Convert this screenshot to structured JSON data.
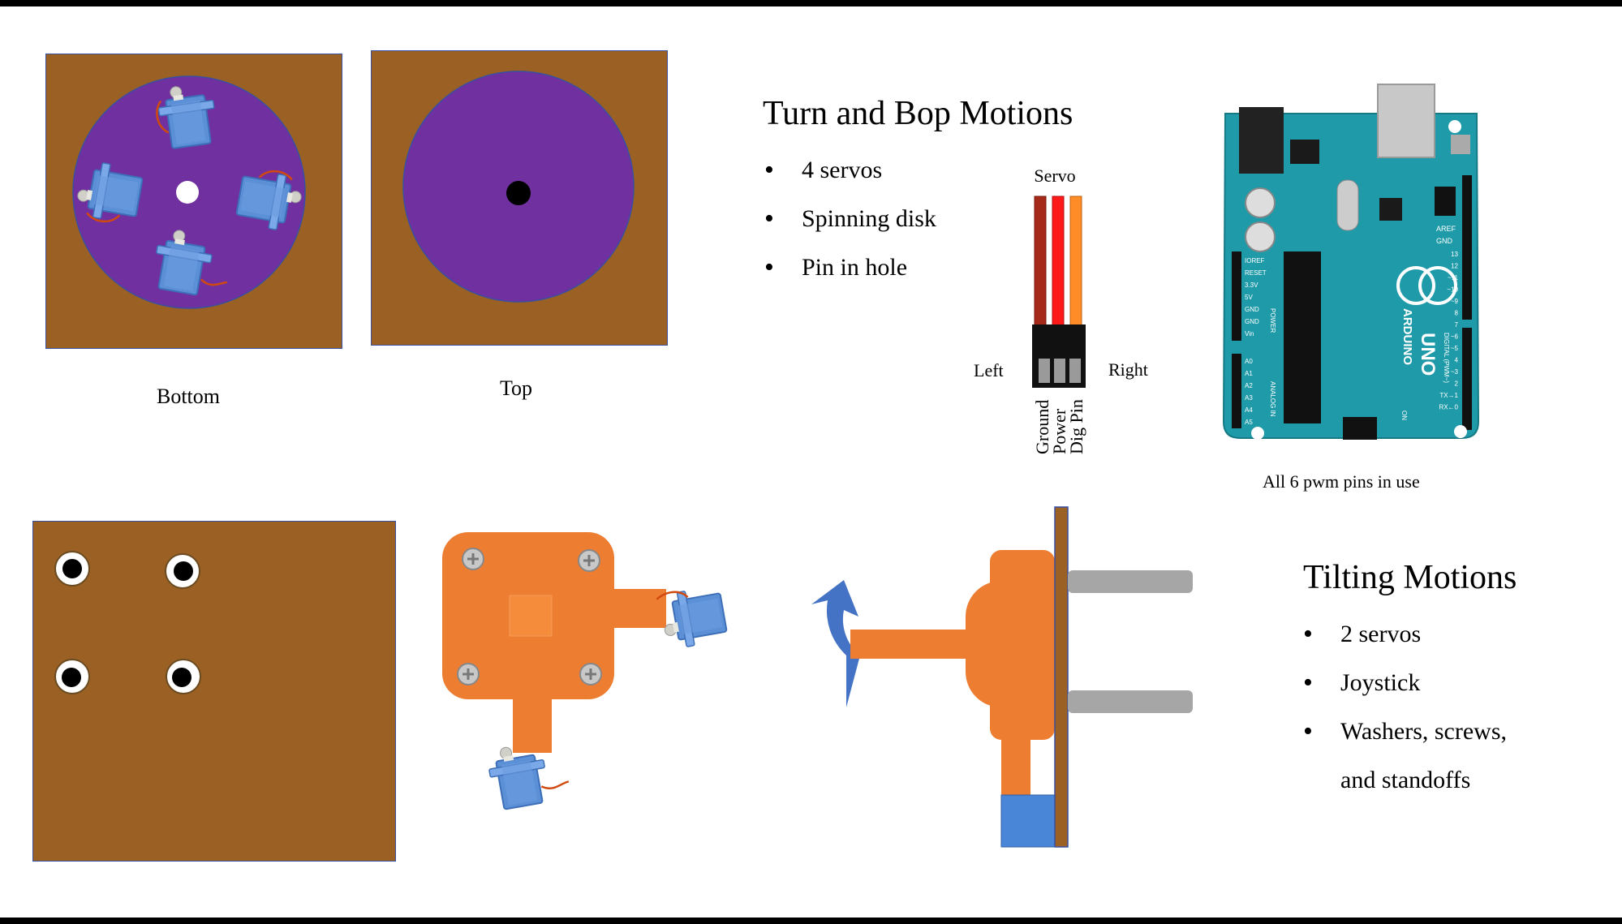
{
  "turn_section": {
    "title": "Turn and Bop Motions",
    "bullets": [
      "4 servos",
      "Spinning disk",
      "Pin in hole"
    ]
  },
  "tilt_section": {
    "title": "Tilting Motions",
    "bullets": [
      "2 servos",
      "Joystick",
      "Washers, screws,",
      "and standoffs"
    ]
  },
  "captions": {
    "bottom": "Bottom",
    "top": "Top",
    "arduino": "All 6 pwm pins in use"
  },
  "servo_connector": {
    "title": "Servo",
    "left": "Left",
    "right": "Right",
    "pins": [
      "Ground",
      "Power",
      "Dig Pin"
    ]
  },
  "arduino_labels": {
    "brand": "ARDUINO",
    "model": "UNO",
    "aref": "AREF",
    "gnd": "GND",
    "power_pins": [
      "IOREF",
      "RESET",
      "3.3V",
      "5V",
      "GND",
      "GND",
      "Vin"
    ],
    "analog_pins": [
      "A0",
      "A1",
      "A2",
      "A3",
      "A4",
      "A5"
    ],
    "digital_pins": [
      "13",
      "12",
      "~11",
      "~10",
      "~9",
      "8",
      "7",
      "~6",
      "~5",
      "4",
      "~3",
      "2",
      "TX→1",
      "RX←0"
    ],
    "power_label": "POWER",
    "analog_label": "ANALOG IN",
    "digital_label": "DIGITAL (PWM~)",
    "on_label": "ON"
  },
  "colors": {
    "wood": "#9a6024",
    "disk": "#7030a0",
    "servo_blue": "#5b8fd6",
    "mount_orange": "#ed7d31",
    "arduino_teal": "#1f9aa8",
    "arrow_blue": "#4472c4",
    "standoff_gray": "#a6a6a6"
  }
}
